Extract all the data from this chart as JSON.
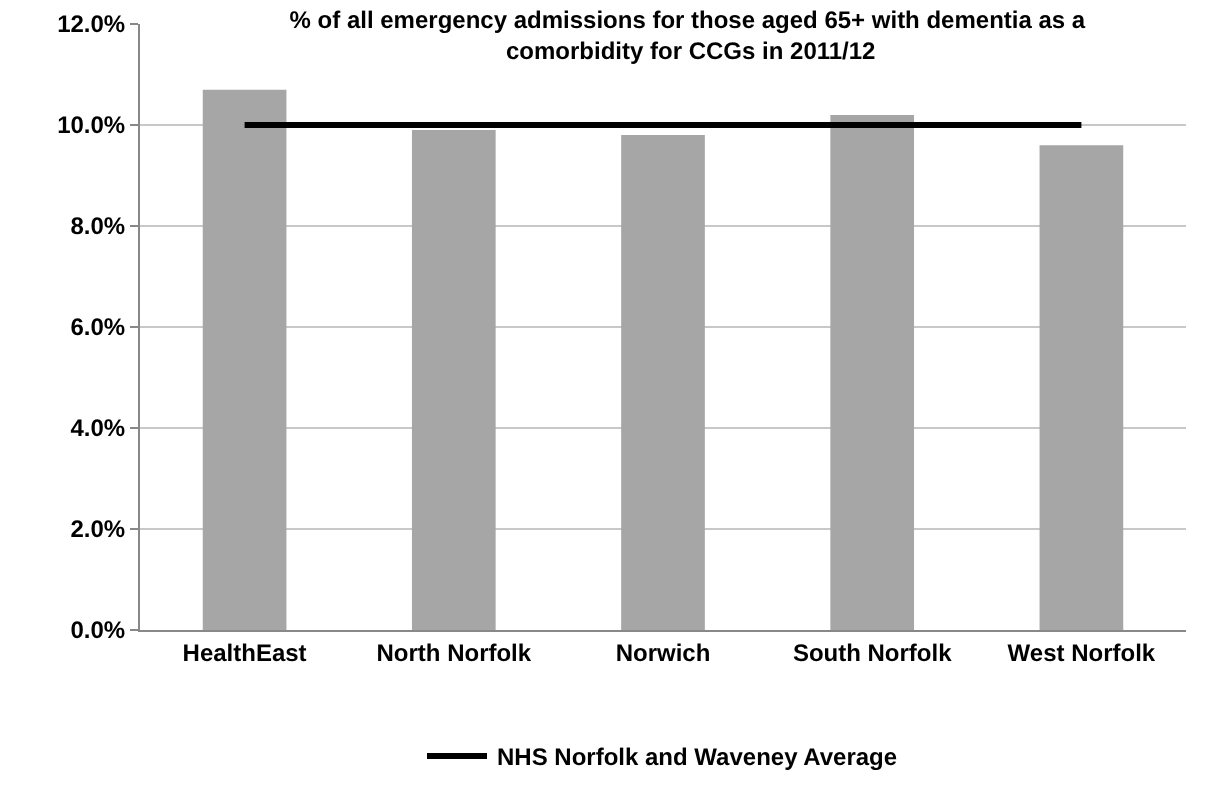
{
  "chart_data": {
    "type": "bar",
    "title": "% of all emergency admissions for those aged 65+ with dementia as a comorbidity for CCGs in 2011/12",
    "categories": [
      "HealthEast",
      "North Norfolk",
      "Norwich",
      "South Norfolk",
      "West Norfolk"
    ],
    "series": [
      {
        "color": "#a6a6a6",
        "values": [
          10.7,
          9.9,
          9.8,
          10.2,
          9.6
        ]
      },
      {
        "type": "line",
        "name": "NHS Norfolk and Waveney Average",
        "color": "#000000",
        "values": [
          10.0,
          10.0,
          10.0,
          10.0,
          10.0
        ]
      }
    ],
    "ylim": [
      0,
      12
    ],
    "yticks": [
      {
        "value": 0,
        "label": "0.0%"
      },
      {
        "value": 2,
        "label": "2.0%"
      },
      {
        "value": 4,
        "label": "4.0%"
      },
      {
        "value": 6,
        "label": "6.0%"
      },
      {
        "value": 8,
        "label": "8.0%"
      },
      {
        "value": 10,
        "label": "10.0%"
      },
      {
        "value": 12,
        "label": "12.0%"
      }
    ],
    "grid": "y",
    "legend": "bottom",
    "marker": "none",
    "line_style": "solid"
  }
}
